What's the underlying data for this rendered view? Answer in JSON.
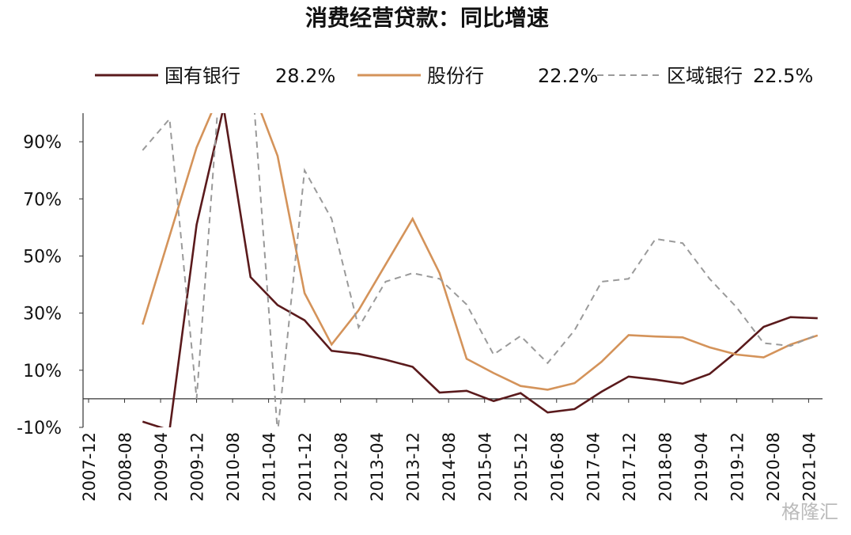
{
  "chart_data": {
    "type": "line",
    "title": "消费经营贷款：同比增速",
    "watermark": "格隆汇",
    "x": [
      "2008-12",
      "2009-06",
      "2009-12",
      "2010-06",
      "2010-12",
      "2011-06",
      "2011-12",
      "2012-06",
      "2012-12",
      "2013-06",
      "2013-12",
      "2014-06",
      "2014-12",
      "2015-06",
      "2015-12",
      "2016-06",
      "2016-12",
      "2017-06",
      "2017-12",
      "2018-06",
      "2018-12",
      "2019-06",
      "2019-12",
      "2020-06",
      "2020-12",
      "2021-06"
    ],
    "xticks": [
      "2007-12",
      "2008-08",
      "2009-04",
      "2009-12",
      "2010-08",
      "2011-04",
      "2011-12",
      "2012-08",
      "2013-04",
      "2013-12",
      "2014-08",
      "2015-04",
      "2015-12",
      "2016-08",
      "2017-04",
      "2017-12",
      "2018-08",
      "2019-04",
      "2019-12",
      "2020-08",
      "2021-04"
    ],
    "ylim": [
      -10,
      100
    ],
    "yticks": [
      {
        "value": -10,
        "label": "-10%"
      },
      {
        "value": 10,
        "label": "10%"
      },
      {
        "value": 30,
        "label": "30%"
      },
      {
        "value": 50,
        "label": "50%"
      },
      {
        "value": 70,
        "label": "70%"
      },
      {
        "value": 90,
        "label": "90%"
      }
    ],
    "grid": false,
    "series": [
      {
        "name": "国有银行",
        "legend_label": "28.2%",
        "color": "#5a1a1c",
        "dash": false,
        "values": [
          -8,
          -11,
          61,
          102,
          42.6,
          32.8,
          27.5,
          16.8,
          15.7,
          13.7,
          11.2,
          2.2,
          2.8,
          -0.8,
          2,
          -4.8,
          -3.6,
          2.5,
          7.8,
          6.7,
          5.3,
          8.7,
          16.5,
          25.2,
          28.6,
          28.2
        ]
      },
      {
        "name": "股份行",
        "legend_label": "22.2%",
        "color": "#d4935a",
        "dash": false,
        "values": [
          26,
          57,
          88,
          110,
          110,
          85,
          37,
          19,
          31,
          47,
          63,
          44,
          14,
          9,
          4.5,
          3.2,
          5.5,
          13,
          22.3,
          21.8,
          21.5,
          18,
          15.5,
          14.5,
          19,
          22.2
        ]
      },
      {
        "name": "区域银行",
        "legend_label": "22.5%",
        "color": "#9a9a9a",
        "dash": true,
        "values": [
          87,
          98,
          0,
          130,
          120,
          -12,
          80,
          63,
          25,
          41,
          44,
          42,
          33,
          15.5,
          22,
          12.5,
          24,
          41,
          42,
          56,
          54.5,
          42,
          32,
          19.5,
          18.5,
          22.5
        ]
      }
    ]
  }
}
